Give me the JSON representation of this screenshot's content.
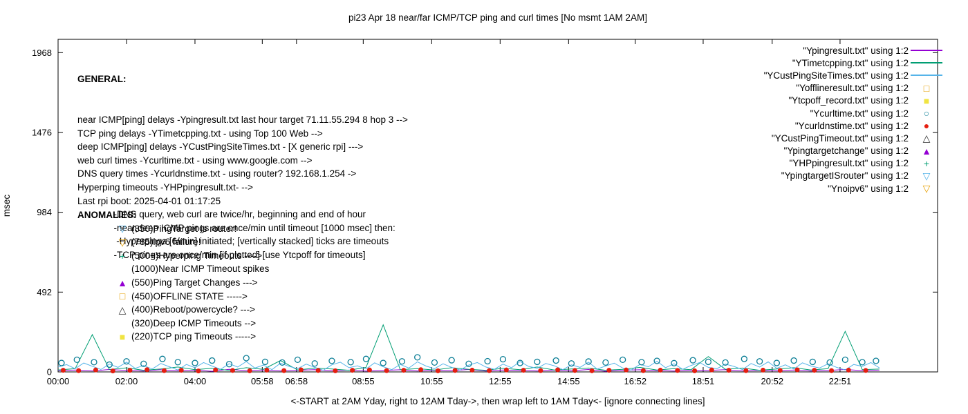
{
  "general": {
    "heading": "GENERAL:",
    "lines": [
      "near ICMP[ping] delays -Ypingresult.txt last hour target 71.11.55.294 8 hop 3 -->",
      "TCP ping delays -YTimetcpping.txt - using Top 100 Web -->",
      "deep ICMP[ping] delays -YCustPingSiteTimes.txt - [X generic rpi] --->",
      "web curl times -Ycurltime.txt - using www.google.com -->",
      "DNS query times -Ycurldnstime.txt - using router? 192.168.1.254 ->",
      "Hyperping timeouts -YHPpingresult.txt- -->",
      "Last rpi boot: 2025-04-01 01:17:25",
      "              -DNS query, web curl are twice/hr, beginning and end of hour",
      "              -near,deep ICMP pings are once/min until timeout [1000 msec] then:",
      "               -Hyperpings [6/min] initiated; [vertically stacked] ticks are timeouts",
      "              -TCP pings are once/min [if plotted] [use Ytcpoff for timeouts]"
    ]
  },
  "anomalies": {
    "heading": "ANOMALIES:",
    "items": [
      {
        "marker": "tri-down-open",
        "color": "#56b4e9",
        "text": "(850)PingTarget is router!"
      },
      {
        "marker": "tri-down-open",
        "color": "#e69f00",
        "text": "(785)ipv6 failure!"
      },
      {
        "marker": "plus",
        "color": "#009e73",
        "text": "(500+)Hyperping Timeouts ---->"
      },
      {
        "marker": "none",
        "color": "#000000",
        "text": "(1000)Near ICMP Timeout spikes"
      },
      {
        "marker": "triangle-filled",
        "color": "#9400d3",
        "text": "(550)Ping Target Changes --->"
      },
      {
        "marker": "square-open",
        "color": "#e69f00",
        "text": "(450)OFFLINE STATE ----->"
      },
      {
        "marker": "triangle-open",
        "color": "#333333",
        "text": "(400)Reboot/powercycle? --->"
      },
      {
        "marker": "none",
        "color": "#000000",
        "text": "(320)Deep ICMP Timeouts -->"
      },
      {
        "marker": "square-filled",
        "color": "#f0e442",
        "text": "(220)TCP ping Timeouts ----->"
      }
    ]
  },
  "chart_data": {
    "type": "line",
    "title": "pi23 Apr 18  near/far ICMP/TCP ping and curl times [No msmt 1AM 2AM]",
    "xlabel": "<-START at 2AM Yday, right to 12AM Tday->, then wrap left to 1AM Tday<- [ignore connecting lines]",
    "ylabel": "msec",
    "x_unit": "hours",
    "xlim": [
      0,
      25.7
    ],
    "ylim": [
      0,
      2050
    ],
    "grid": false,
    "legend_position": "top-right",
    "yticks": [
      0,
      492,
      984,
      1476,
      1968
    ],
    "xticks": [
      {
        "label": "00:00",
        "h": 0
      },
      {
        "label": "02:00",
        "h": 2
      },
      {
        "label": "04:00",
        "h": 4
      },
      {
        "label": "05:58",
        "h": 5.967
      },
      {
        "label": "06:58",
        "h": 6.967
      },
      {
        "label": "08:55",
        "h": 8.917
      },
      {
        "label": "10:55",
        "h": 10.917
      },
      {
        "label": "12:55",
        "h": 12.917
      },
      {
        "label": "14:55",
        "h": 14.917
      },
      {
        "label": "16:52",
        "h": 16.867
      },
      {
        "label": "18:51",
        "h": 18.85
      },
      {
        "label": "20:52",
        "h": 20.867
      },
      {
        "label": "22:51",
        "h": 22.85
      }
    ],
    "series": [
      {
        "name": "\"Ypingresult.txt\" using 1:2",
        "type": "line",
        "color": "#9400d3",
        "x_start": 0,
        "x_step": 0.5,
        "values": [
          8,
          12,
          6,
          15,
          9,
          5,
          13,
          7,
          11,
          4,
          16,
          8,
          12,
          6,
          10,
          14,
          7,
          11,
          5,
          9,
          13,
          6,
          10,
          8,
          15,
          5,
          12,
          9,
          6,
          11,
          7,
          15,
          4,
          10,
          13,
          8,
          5,
          11,
          9,
          14,
          6,
          10,
          7,
          12,
          5,
          9,
          15,
          8,
          11
        ]
      },
      {
        "name": "\"YTimetcpping.txt\" using 1:2",
        "type": "line",
        "color": "#009e73",
        "x_start": 0,
        "x_step": 0.5,
        "values": [
          12,
          20,
          230,
          15,
          25,
          10,
          18,
          30,
          14,
          22,
          9,
          26,
          16,
          70,
          12,
          24,
          18,
          10,
          28,
          290,
          14,
          20,
          12,
          26,
          16,
          10,
          22,
          14,
          30,
          12,
          18,
          24,
          10,
          16,
          28,
          12,
          20,
          14,
          95,
          16,
          24,
          10,
          18,
          26,
          12,
          20,
          250,
          14,
          18
        ]
      },
      {
        "name": "\"YCustPingSiteTimes.txt\" using 1:2",
        "type": "line",
        "color": "#56b4e9",
        "x_start": 0,
        "x_step": 0.25,
        "values": [
          30,
          45,
          20,
          55,
          35,
          15,
          48,
          28,
          60,
          22,
          40,
          18,
          52,
          32,
          12,
          46,
          26,
          58,
          36,
          16,
          50,
          30,
          64,
          24,
          42,
          14,
          54,
          34,
          20,
          48,
          28,
          10,
          44,
          60,
          26,
          38,
          18,
          56,
          32,
          14,
          46,
          24,
          62,
          36,
          20,
          50,
          28,
          12,
          42,
          58,
          30,
          16,
          48,
          26,
          64,
          34,
          22,
          52,
          38,
          14,
          44,
          28,
          60,
          18,
          36,
          54,
          24,
          12,
          46,
          32,
          66,
          26,
          50,
          16,
          40,
          58,
          28,
          20,
          48,
          34,
          14,
          52,
          30,
          62,
          22,
          44,
          18,
          56,
          36,
          24,
          50,
          28,
          12,
          46,
          34,
          58,
          25
        ]
      },
      {
        "name": "\"Yofflineresult.txt\" using 1:2",
        "type": "scatter",
        "marker": "square-open",
        "color": "#e69f00",
        "points": []
      },
      {
        "name": "\"Ytcpoff_record.txt\" using 1:2",
        "type": "scatter",
        "marker": "square-filled",
        "color": "#f0e442",
        "points": []
      },
      {
        "name": "\"Ycurltime.txt\" using 1:2",
        "type": "scatter",
        "marker": "circle-open",
        "color": "#0b7e96",
        "points": [
          [
            0.1,
            55
          ],
          [
            0.55,
            75
          ],
          [
            1.05,
            60
          ],
          [
            1.5,
            45
          ],
          [
            2.0,
            65
          ],
          [
            2.5,
            50
          ],
          [
            3.05,
            80
          ],
          [
            3.5,
            60
          ],
          [
            4.0,
            55
          ],
          [
            4.5,
            70
          ],
          [
            5.0,
            48
          ],
          [
            5.5,
            85
          ],
          [
            6.05,
            62
          ],
          [
            6.55,
            58
          ],
          [
            7.0,
            75
          ],
          [
            7.5,
            52
          ],
          [
            8.0,
            68
          ],
          [
            8.55,
            60
          ],
          [
            9.0,
            80
          ],
          [
            9.5,
            55
          ],
          [
            10.05,
            65
          ],
          [
            10.5,
            90
          ],
          [
            11.0,
            58
          ],
          [
            11.5,
            72
          ],
          [
            12.0,
            50
          ],
          [
            12.55,
            66
          ],
          [
            13.0,
            78
          ],
          [
            13.5,
            55
          ],
          [
            14.0,
            62
          ],
          [
            14.55,
            70
          ],
          [
            15.0,
            52
          ],
          [
            15.5,
            64
          ],
          [
            16.0,
            58
          ],
          [
            16.5,
            75
          ],
          [
            17.05,
            60
          ],
          [
            17.5,
            68
          ],
          [
            18.0,
            54
          ],
          [
            18.55,
            72
          ],
          [
            19.0,
            62
          ],
          [
            19.5,
            58
          ],
          [
            20.05,
            80
          ],
          [
            20.5,
            65
          ],
          [
            21.0,
            55
          ],
          [
            21.5,
            70
          ],
          [
            22.05,
            62
          ],
          [
            22.55,
            58
          ],
          [
            23.0,
            75
          ],
          [
            23.5,
            60
          ],
          [
            23.9,
            68
          ]
        ]
      },
      {
        "name": "\"Ycurldnstime.txt\" using 1:2",
        "type": "scatter",
        "marker": "circle-filled",
        "color": "#e51e10",
        "points": [
          [
            0.15,
            10
          ],
          [
            0.6,
            8
          ],
          [
            1.1,
            12
          ],
          [
            1.6,
            6
          ],
          [
            2.1,
            10
          ],
          [
            2.6,
            14
          ],
          [
            3.1,
            8
          ],
          [
            3.6,
            10
          ],
          [
            4.1,
            6
          ],
          [
            4.6,
            12
          ],
          [
            5.1,
            9
          ],
          [
            5.6,
            7
          ],
          [
            6.1,
            11
          ],
          [
            6.6,
            8
          ],
          [
            7.1,
            13
          ],
          [
            7.6,
            9
          ],
          [
            8.1,
            7
          ],
          [
            8.6,
            10
          ],
          [
            9.1,
            12
          ],
          [
            9.6,
            8
          ],
          [
            10.1,
            10
          ],
          [
            10.6,
            14
          ],
          [
            11.1,
            7
          ],
          [
            11.6,
            9
          ],
          [
            12.1,
            11
          ],
          [
            12.6,
            8
          ],
          [
            13.1,
            12
          ],
          [
            13.6,
            10
          ],
          [
            14.1,
            8
          ],
          [
            14.6,
            13
          ],
          [
            15.1,
            9
          ],
          [
            15.6,
            7
          ],
          [
            16.1,
            10
          ],
          [
            16.6,
            12
          ],
          [
            17.1,
            8
          ],
          [
            17.6,
            11
          ],
          [
            18.1,
            9
          ],
          [
            18.6,
            7
          ],
          [
            19.1,
            12
          ],
          [
            19.6,
            10
          ],
          [
            20.1,
            8
          ],
          [
            20.6,
            11
          ],
          [
            21.1,
            9
          ],
          [
            21.6,
            13
          ],
          [
            22.1,
            10
          ],
          [
            22.6,
            8
          ],
          [
            23.1,
            11
          ],
          [
            23.6,
            9
          ]
        ]
      },
      {
        "name": "\"YCustPingTimeout.txt\" using 1:2",
        "type": "scatter",
        "marker": "triangle-open",
        "color": "#333333",
        "points": []
      },
      {
        "name": "\"Ypingtargetchange\" using 1:2",
        "type": "scatter",
        "marker": "triangle-filled",
        "color": "#9400d3",
        "points": []
      },
      {
        "name": "\"YHPpingresult.txt\" using 1:2",
        "type": "scatter",
        "marker": "plus",
        "color": "#009e73",
        "points": []
      },
      {
        "name": "\"YpingtargetISrouter\" using 1:2",
        "type": "scatter",
        "marker": "tri-down-open",
        "color": "#56b4e9",
        "points": []
      },
      {
        "name": "\"Ynoipv6\" using 1:2",
        "type": "scatter",
        "marker": "tri-down-open",
        "color": "#e69f00",
        "points": []
      }
    ]
  }
}
